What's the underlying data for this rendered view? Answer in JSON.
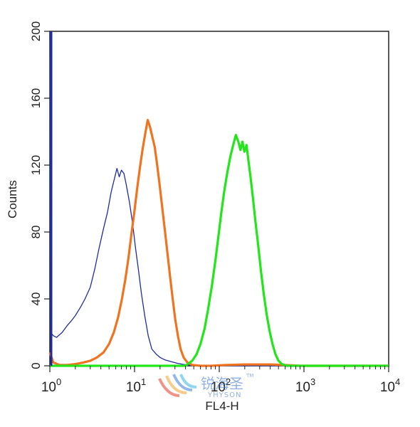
{
  "chart_data": {
    "type": "line",
    "title": "",
    "xlabel": "FL4-H",
    "ylabel": "Counts",
    "x_scale": "log",
    "xlim": [
      1,
      10000
    ],
    "ylim": [
      0,
      200
    ],
    "x_ticks": [
      {
        "value": 1,
        "base": "10",
        "exp": "0"
      },
      {
        "value": 10,
        "base": "10",
        "exp": "1"
      },
      {
        "value": 100,
        "base": "10",
        "exp": "2"
      },
      {
        "value": 1000,
        "base": "10",
        "exp": "3"
      },
      {
        "value": 10000,
        "base": "10",
        "exp": "4"
      }
    ],
    "y_ticks": [
      "0",
      "40",
      "80",
      "120",
      "160",
      "200"
    ],
    "grid": false,
    "series": [
      {
        "color": "#1f2d9e",
        "stroke": "thin",
        "points": [
          [
            1.0,
            200
          ],
          [
            1.02,
            20
          ],
          [
            1.1,
            18
          ],
          [
            1.2,
            17
          ],
          [
            1.4,
            20
          ],
          [
            1.6,
            24
          ],
          [
            1.8,
            27
          ],
          [
            2.0,
            30
          ],
          [
            2.3,
            35
          ],
          [
            2.6,
            40
          ],
          [
            3.0,
            47
          ],
          [
            3.4,
            58
          ],
          [
            3.8,
            70
          ],
          [
            4.3,
            82
          ],
          [
            4.8,
            92
          ],
          [
            5.3,
            104
          ],
          [
            5.8,
            112
          ],
          [
            6.2,
            118
          ],
          [
            6.6,
            113
          ],
          [
            7.0,
            117
          ],
          [
            7.5,
            115
          ],
          [
            8.0,
            108
          ],
          [
            8.7,
            98
          ],
          [
            9.5,
            85
          ],
          [
            10.3,
            70
          ],
          [
            11.2,
            56
          ],
          [
            12.0,
            44
          ],
          [
            13.2,
            30
          ],
          [
            14.5,
            18
          ],
          [
            16.0,
            10
          ],
          [
            18.0,
            7
          ],
          [
            20.0,
            5
          ],
          [
            23.0,
            3.5
          ],
          [
            27.0,
            2.5
          ],
          [
            32.0,
            1.5
          ],
          [
            38.0,
            0.8
          ],
          [
            45.0,
            0.3
          ],
          [
            55.0,
            0.1
          ],
          [
            70.0,
            0
          ],
          [
            10000,
            0
          ]
        ]
      },
      {
        "color": "#f07320",
        "stroke": "thick",
        "points": [
          [
            1.0,
            8
          ],
          [
            1.1,
            2
          ],
          [
            1.3,
            0.5
          ],
          [
            1.6,
            0.5
          ],
          [
            2.0,
            1
          ],
          [
            2.5,
            2
          ],
          [
            3.0,
            3
          ],
          [
            3.6,
            5
          ],
          [
            4.3,
            8
          ],
          [
            5.0,
            13
          ],
          [
            5.7,
            20
          ],
          [
            6.4,
            29
          ],
          [
            7.1,
            40
          ],
          [
            7.8,
            52
          ],
          [
            8.5,
            65
          ],
          [
            9.2,
            79
          ],
          [
            10.0,
            93
          ],
          [
            10.8,
            107
          ],
          [
            11.6,
            119
          ],
          [
            12.5,
            130
          ],
          [
            13.4,
            139
          ],
          [
            14.3,
            147
          ],
          [
            15.2,
            143
          ],
          [
            16.2,
            137
          ],
          [
            17.3,
            131
          ],
          [
            18.5,
            120
          ],
          [
            19.8,
            108
          ],
          [
            21.2,
            95
          ],
          [
            22.8,
            81
          ],
          [
            24.5,
            67
          ],
          [
            26.3,
            53
          ],
          [
            28.2,
            40
          ],
          [
            30.2,
            28
          ],
          [
            32.5,
            18
          ],
          [
            35.0,
            10
          ],
          [
            38.0,
            5
          ],
          [
            42.0,
            2
          ],
          [
            48.0,
            0.5
          ],
          [
            60.0,
            0
          ],
          [
            80.0,
            0
          ],
          [
            120.0,
            0.5
          ],
          [
            200.0,
            0.8
          ],
          [
            400.0,
            0.8
          ],
          [
            700.0,
            0.3
          ],
          [
            900.0,
            0
          ],
          [
            10000,
            0
          ]
        ]
      },
      {
        "color": "#22e51a",
        "stroke": "thick",
        "points": [
          [
            1.0,
            0
          ],
          [
            40.0,
            0
          ],
          [
            48.0,
            3
          ],
          [
            54.0,
            7
          ],
          [
            60.0,
            13
          ],
          [
            67.0,
            22
          ],
          [
            74.0,
            34
          ],
          [
            82.0,
            48
          ],
          [
            90.0,
            63
          ],
          [
            98.0,
            78
          ],
          [
            106.0,
            92
          ],
          [
            115.0,
            105
          ],
          [
            125.0,
            116
          ],
          [
            135.0,
            125
          ],
          [
            146.0,
            132
          ],
          [
            157.0,
            138
          ],
          [
            168.0,
            134
          ],
          [
            178.0,
            129
          ],
          [
            188.0,
            134
          ],
          [
            198.0,
            128
          ],
          [
            210.0,
            132
          ],
          [
            222.0,
            122
          ],
          [
            235.0,
            112
          ],
          [
            250.0,
            100
          ],
          [
            268.0,
            86
          ],
          [
            288.0,
            72
          ],
          [
            310.0,
            57
          ],
          [
            335.0,
            43
          ],
          [
            362.0,
            31
          ],
          [
            392.0,
            21
          ],
          [
            425.0,
            13
          ],
          [
            460.0,
            7
          ],
          [
            500.0,
            3
          ],
          [
            550.0,
            1
          ],
          [
            620.0,
            0
          ],
          [
            10000,
            0
          ]
        ]
      }
    ]
  },
  "watermark": {
    "cn_text": "锐海圣",
    "en_text": "YHYSON",
    "tm": "TM"
  }
}
